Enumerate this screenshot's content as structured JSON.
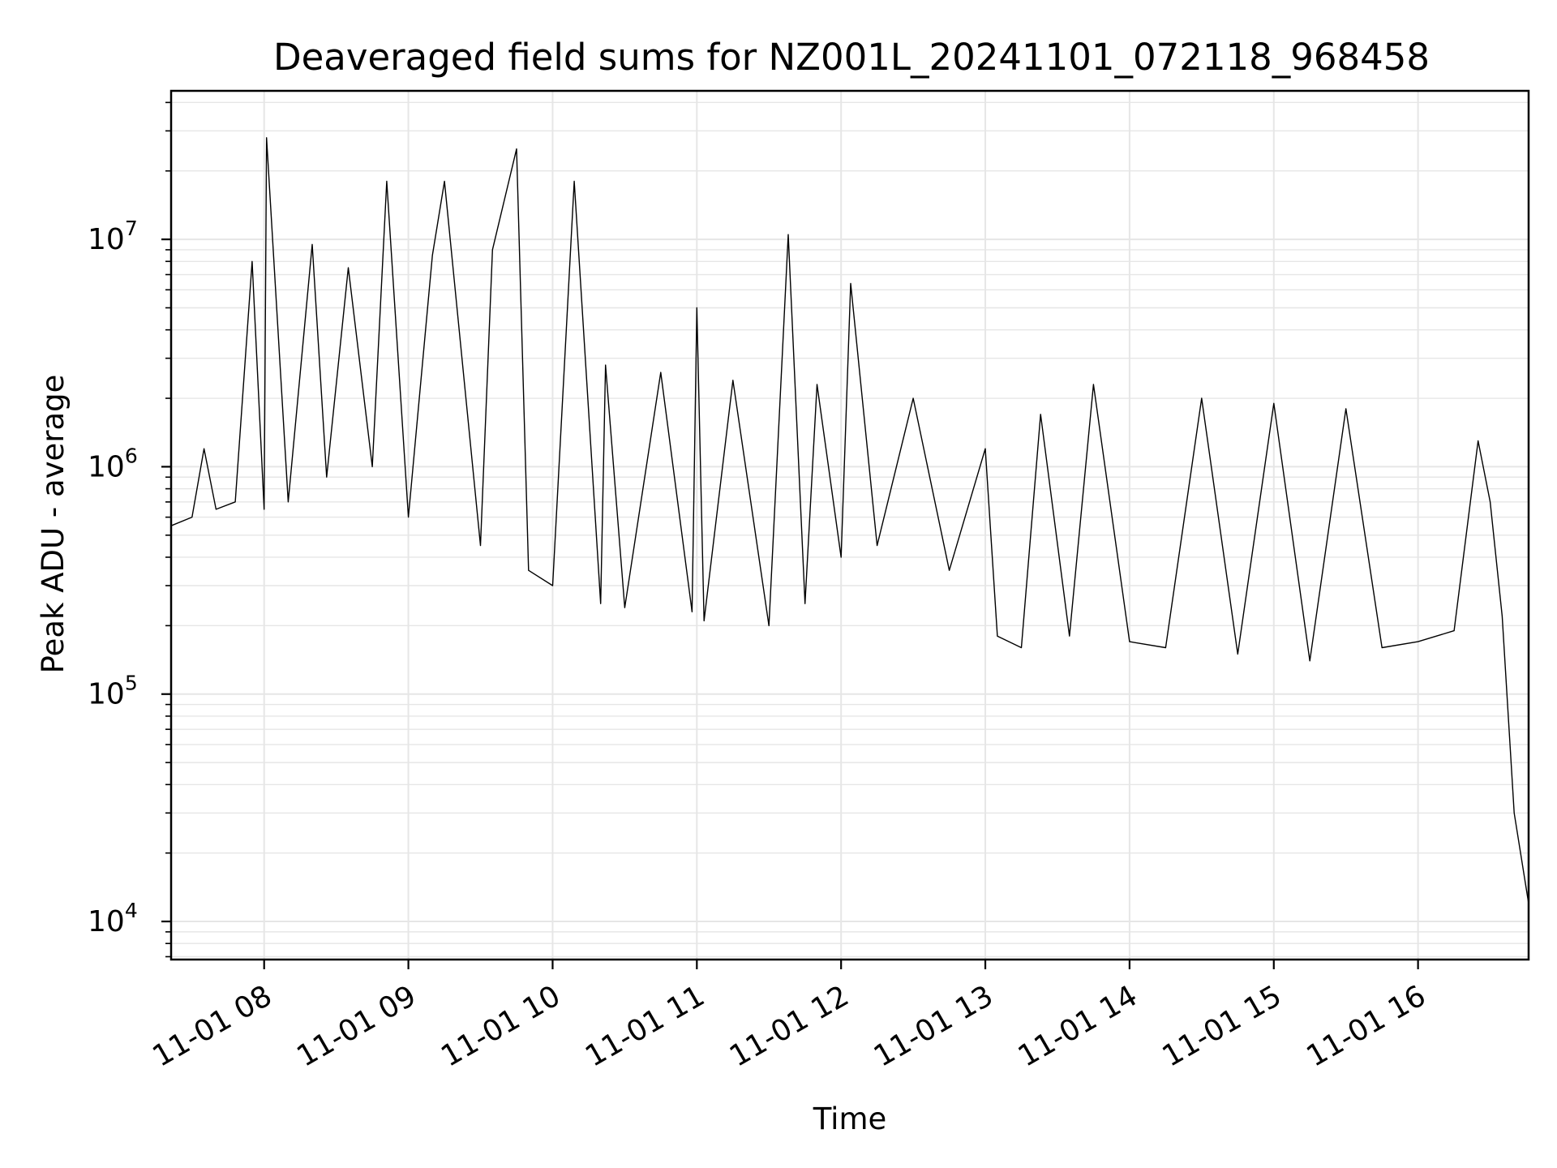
{
  "chart_data": {
    "type": "line",
    "title": "Deaveraged field sums for NZ001L_20241101_072118_968458",
    "xlabel": "Time",
    "ylabel": "Peak ADU - average",
    "x_axis": {
      "kind": "datetime",
      "range": [
        "2024-11-01T07:21:18",
        "2024-11-01T16:46:00"
      ],
      "tick_labels": [
        "11-01 08",
        "11-01 09",
        "11-01 10",
        "11-01 11",
        "11-01 12",
        "11-01 13",
        "11-01 14",
        "11-01 15",
        "11-01 16"
      ],
      "tick_rotation_deg": 30
    },
    "y_axis": {
      "scale": "log",
      "range": [
        6800,
        45000000
      ],
      "tick_labels": [
        {
          "base": "10",
          "exp": "4",
          "value": 10000
        },
        {
          "base": "10",
          "exp": "5",
          "value": 100000
        },
        {
          "base": "10",
          "exp": "6",
          "value": 1000000
        },
        {
          "base": "10",
          "exp": "7",
          "value": 10000000
        }
      ]
    },
    "grid": true,
    "legend": "none",
    "line_color": "#000000",
    "grid_color": "#e6e6e6",
    "series": [
      {
        "x": [
          "2024-11-01T07:21:18",
          "2024-11-01T07:30",
          "2024-11-01T07:35",
          "2024-11-01T07:40",
          "2024-11-01T07:48",
          "2024-11-01T07:55",
          "2024-11-01T08:00",
          "2024-11-01T08:01",
          "2024-11-01T08:10",
          "2024-11-01T08:20",
          "2024-11-01T08:26",
          "2024-11-01T08:35",
          "2024-11-01T08:45",
          "2024-11-01T08:51",
          "2024-11-01T09:00",
          "2024-11-01T09:10",
          "2024-11-01T09:15",
          "2024-11-01T09:30",
          "2024-11-01T09:35",
          "2024-11-01T09:45",
          "2024-11-01T09:50",
          "2024-11-01T10:00",
          "2024-11-01T10:09",
          "2024-11-01T10:20",
          "2024-11-01T10:22",
          "2024-11-01T10:30",
          "2024-11-01T10:45",
          "2024-11-01T10:58",
          "2024-11-01T11:00",
          "2024-11-01T11:03",
          "2024-11-01T11:15",
          "2024-11-01T11:30",
          "2024-11-01T11:38",
          "2024-11-01T11:45",
          "2024-11-01T11:50",
          "2024-11-01T12:00",
          "2024-11-01T12:04",
          "2024-11-01T12:15",
          "2024-11-01T12:30",
          "2024-11-01T12:45",
          "2024-11-01T13:00",
          "2024-11-01T13:05",
          "2024-11-01T13:15",
          "2024-11-01T13:23",
          "2024-11-01T13:35",
          "2024-11-01T13:45",
          "2024-11-01T14:00",
          "2024-11-01T14:15",
          "2024-11-01T14:30",
          "2024-11-01T14:45",
          "2024-11-01T15:00",
          "2024-11-01T15:15",
          "2024-11-01T15:30",
          "2024-11-01T15:45",
          "2024-11-01T16:00",
          "2024-11-01T16:15",
          "2024-11-01T16:25",
          "2024-11-01T16:30",
          "2024-11-01T16:35",
          "2024-11-01T16:40",
          "2024-11-01T16:46"
        ],
        "y": [
          550000,
          600000,
          1200000,
          650000,
          700000,
          8000000,
          650000,
          28000000,
          700000,
          9500000,
          900000,
          7500000,
          1000000,
          18000000,
          600000,
          8500000,
          18000000,
          450000,
          9000000,
          25000000,
          350000,
          300000,
          18000000,
          250000,
          2800000,
          240000,
          2600000,
          230000,
          5000000,
          210000,
          2400000,
          200000,
          10500000,
          250000,
          2300000,
          400000,
          6400000,
          450000,
          2000000,
          350000,
          1200000,
          180000,
          160000,
          1700000,
          180000,
          2300000,
          170000,
          160000,
          2000000,
          150000,
          1900000,
          140000,
          1800000,
          160000,
          170000,
          190000,
          1300000,
          700000,
          220000,
          30000,
          12000
        ]
      }
    ]
  }
}
